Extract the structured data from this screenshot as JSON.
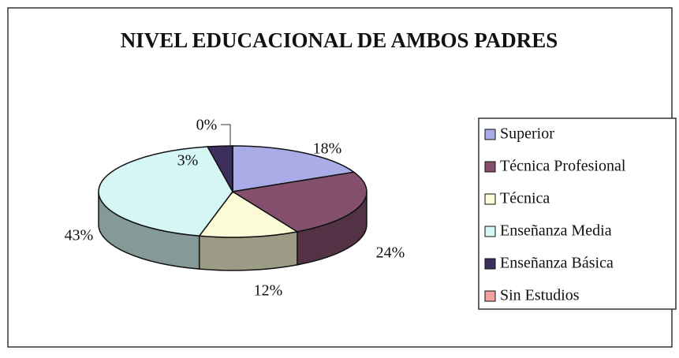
{
  "chart_data": {
    "type": "pie",
    "title": "NIVEL EDUCACIONAL DE AMBOS PADRES",
    "categories": [
      "Superior",
      "Técnica Profesional",
      "Técnica",
      "Enseñanza Media",
      "Enseñanza Básica",
      "Sin Estudios"
    ],
    "values": [
      18,
      24,
      12,
      43,
      3,
      0
    ],
    "value_labels": [
      "18%",
      "24%",
      "12%",
      "43%",
      "3%",
      "0%"
    ],
    "colors": [
      "#a9ace6",
      "#85506e",
      "#fbfbd8",
      "#d6f6f6",
      "#3c2f5e",
      "#f2a0a0"
    ],
    "legend": "right"
  }
}
